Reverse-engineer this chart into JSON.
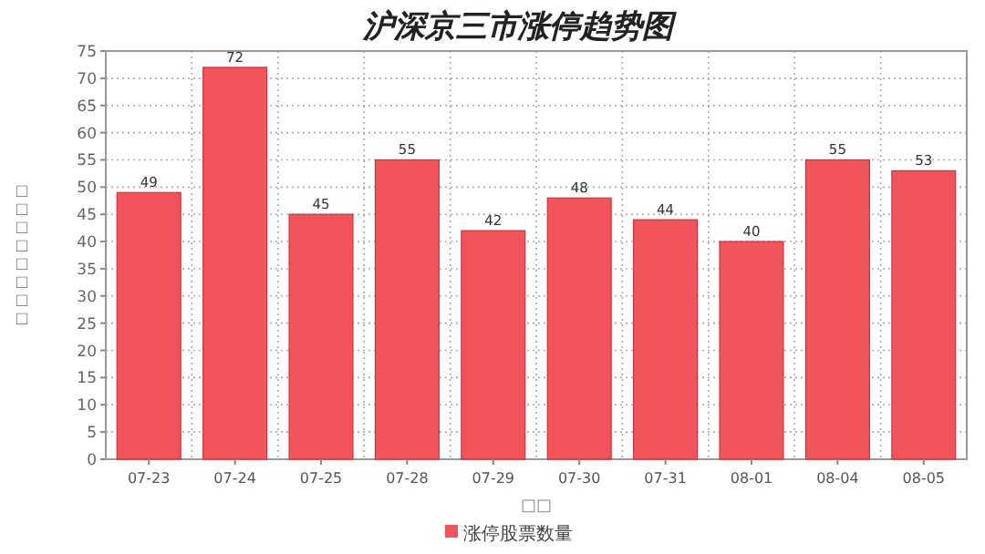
{
  "chart_data": {
    "type": "bar",
    "title": "沪深京三市涨停趋势图",
    "xlabel": "□□",
    "ylabel": "□□□□□□□□",
    "categories": [
      "07-23",
      "07-24",
      "07-25",
      "07-28",
      "07-29",
      "07-30",
      "07-31",
      "08-01",
      "08-04",
      "08-05"
    ],
    "series": [
      {
        "name": "涨停股票数量",
        "color": "#f2545b",
        "values": [
          49,
          72,
          45,
          55,
          42,
          48,
          44,
          40,
          55,
          53
        ]
      }
    ],
    "ylim": [
      0,
      75
    ],
    "yticks": [
      0,
      5,
      10,
      15,
      20,
      25,
      30,
      35,
      40,
      45,
      50,
      55,
      60,
      65,
      70,
      75
    ],
    "grid": true,
    "legend": "bottom",
    "data_labels": true
  }
}
